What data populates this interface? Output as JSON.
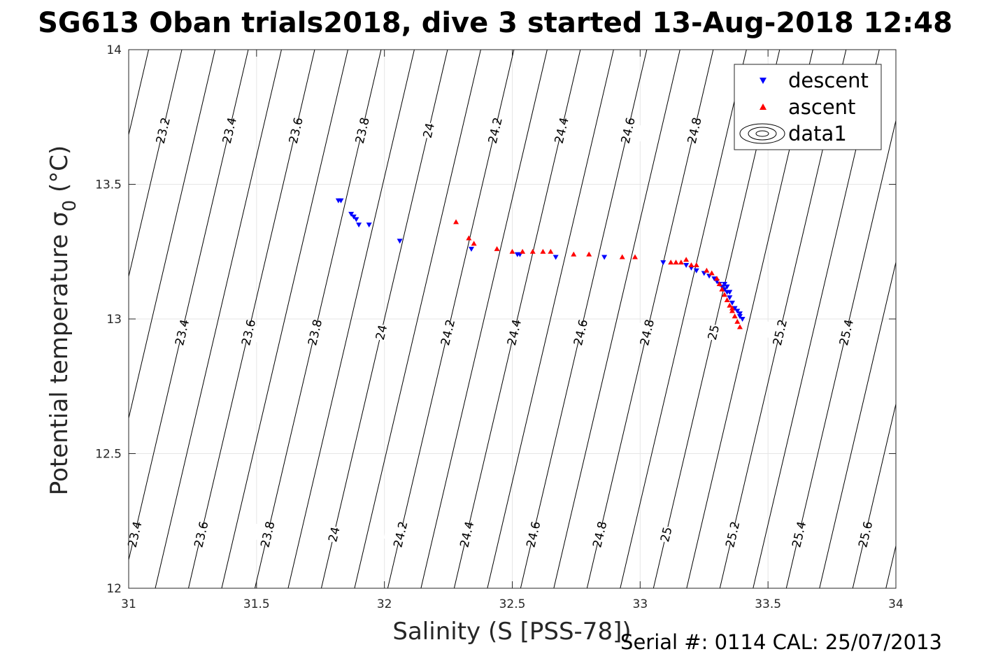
{
  "chart_data": {
    "type": "scatter",
    "title": "SG613 Oban trials2018, dive 3 started 13-Aug-2018 12:48",
    "xlabel": "Salinity (S [PSS-78])",
    "ylabel": "Potential temperature σ",
    "ylabel_subscript": "0",
    "ylabel_unit": " (°C)",
    "xlim": [
      31,
      34
    ],
    "ylim": [
      12,
      14
    ],
    "xticks": [
      31,
      31.5,
      32,
      32.5,
      33,
      33.5,
      34
    ],
    "yticks": [
      12,
      12.5,
      13,
      13.5,
      14
    ],
    "xtick_labels": [
      "31",
      "31.5",
      "32",
      "32.5",
      "33",
      "33.5",
      "34"
    ],
    "ytick_labels": [
      "12",
      "12.5",
      "13",
      "13.5",
      "14"
    ],
    "grid": true,
    "legend_position": "top-right",
    "series": [
      {
        "name": "descent",
        "marker": "triangle-down",
        "color": "#0000ff",
        "points": [
          [
            31.82,
            13.44
          ],
          [
            31.83,
            13.44
          ],
          [
            31.87,
            13.39
          ],
          [
            31.88,
            13.38
          ],
          [
            31.89,
            13.37
          ],
          [
            31.9,
            13.35
          ],
          [
            31.94,
            13.35
          ],
          [
            32.06,
            13.29
          ],
          [
            32.34,
            13.26
          ],
          [
            32.52,
            13.24
          ],
          [
            32.53,
            13.24
          ],
          [
            32.67,
            13.23
          ],
          [
            32.86,
            13.23
          ],
          [
            33.09,
            13.21
          ],
          [
            33.18,
            13.2
          ],
          [
            33.2,
            13.19
          ],
          [
            33.22,
            13.18
          ],
          [
            33.25,
            13.17
          ],
          [
            33.27,
            13.16
          ],
          [
            33.29,
            13.15
          ],
          [
            33.3,
            13.14
          ],
          [
            33.31,
            13.13
          ],
          [
            33.32,
            13.12
          ],
          [
            33.33,
            13.11
          ],
          [
            33.34,
            13.1
          ],
          [
            33.35,
            13.08
          ],
          [
            33.36,
            13.06
          ],
          [
            33.37,
            13.04
          ],
          [
            33.38,
            13.03
          ],
          [
            33.39,
            13.01
          ],
          [
            33.4,
            13.0
          ],
          [
            33.39,
            13.02
          ],
          [
            33.33,
            13.13
          ],
          [
            33.34,
            13.12
          ],
          [
            33.35,
            13.1
          ]
        ]
      },
      {
        "name": "ascent",
        "marker": "triangle-up",
        "color": "#ff0000",
        "points": [
          [
            32.28,
            13.36
          ],
          [
            32.33,
            13.3
          ],
          [
            32.35,
            13.28
          ],
          [
            32.44,
            13.26
          ],
          [
            32.5,
            13.25
          ],
          [
            32.54,
            13.25
          ],
          [
            32.58,
            13.25
          ],
          [
            32.62,
            13.25
          ],
          [
            32.65,
            13.25
          ],
          [
            32.74,
            13.24
          ],
          [
            32.8,
            13.24
          ],
          [
            32.93,
            13.23
          ],
          [
            32.98,
            13.23
          ],
          [
            33.12,
            13.21
          ],
          [
            33.14,
            13.21
          ],
          [
            33.16,
            13.21
          ],
          [
            33.18,
            13.22
          ],
          [
            33.2,
            13.2
          ],
          [
            33.22,
            13.2
          ],
          [
            33.26,
            13.18
          ],
          [
            33.28,
            13.17
          ],
          [
            33.3,
            13.15
          ],
          [
            33.31,
            13.13
          ],
          [
            33.32,
            13.11
          ],
          [
            33.33,
            13.09
          ],
          [
            33.34,
            13.07
          ],
          [
            33.35,
            13.05
          ],
          [
            33.36,
            13.03
          ],
          [
            33.37,
            13.01
          ],
          [
            33.38,
            12.99
          ],
          [
            33.39,
            12.97
          ],
          [
            33.36,
            13.04
          ]
        ]
      }
    ],
    "contours": {
      "name": "data1",
      "label_values": [
        "23.2",
        "23.4",
        "23.6",
        "23.8",
        "24",
        "24.2",
        "24.4",
        "24.6",
        "24.8",
        "25",
        "25.2",
        "25.4",
        "25.6"
      ]
    },
    "footer": "Serial #: 0114  CAL: 25/07/2013"
  }
}
